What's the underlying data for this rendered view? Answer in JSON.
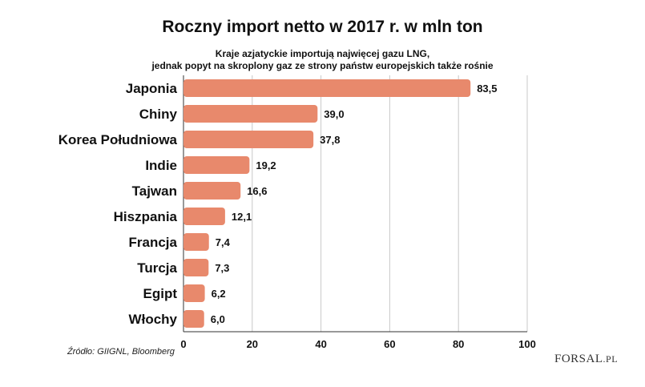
{
  "chart_data": {
    "type": "bar",
    "orientation": "horizontal",
    "title": "Roczny import netto w 2017 r. w mln ton",
    "subtitle": [
      "Kraje azjatyckie importują najwięcej gazu LNG,",
      "jednak popyt na skroplony gaz ze strony państw europejskich także rośnie"
    ],
    "categories": [
      "Japonia",
      "Chiny",
      "Korea Południowa",
      "Indie",
      "Tajwan",
      "Hiszpania",
      "Francja",
      "Turcja",
      "Egipt",
      "Włochy"
    ],
    "values": [
      83.5,
      39.0,
      37.8,
      19.2,
      16.6,
      12.1,
      7.4,
      7.3,
      6.2,
      6.0
    ],
    "value_labels": [
      "83,5",
      "39,0",
      "37,8",
      "19,2",
      "16,6",
      "12,1",
      "7,4",
      "7,3",
      "6,2",
      "6,0"
    ],
    "xlim": [
      0,
      100
    ],
    "xticks": [
      0,
      20,
      40,
      60,
      80,
      100
    ],
    "grid": true,
    "bar_color": "#e8896c"
  },
  "source": "Źródło: GIIGNL, Bloomberg",
  "logo": {
    "main": "FORSAL",
    "suffix": ".PL"
  }
}
